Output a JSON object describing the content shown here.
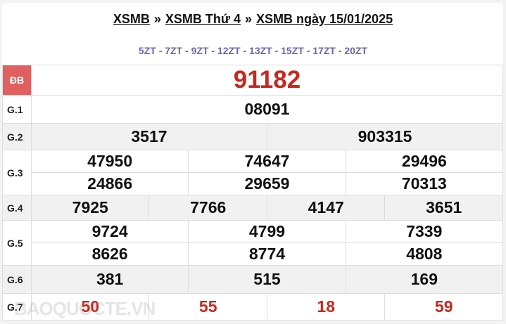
{
  "breadcrumb": {
    "items": [
      "XSMB",
      "XSMB Thứ 4",
      "XSMB ngày 15/01/2025"
    ],
    "separator": "»"
  },
  "zt": "5ZT - 7ZT - 9ZT - 12ZT - 13ZT - 15ZT - 17ZT - 20ZT",
  "prizes": {
    "db": {
      "label": "ĐB",
      "values": [
        "91182"
      ]
    },
    "g1": {
      "label": "G.1",
      "values": [
        "08091"
      ]
    },
    "g2": {
      "label": "G.2",
      "values": [
        "3517",
        "903315"
      ]
    },
    "g3": {
      "label": "G.3",
      "values": [
        "47950",
        "74647",
        "29496",
        "24866",
        "29659",
        "70313"
      ]
    },
    "g4": {
      "label": "G.4",
      "values": [
        "7925",
        "7766",
        "4147",
        "3651"
      ]
    },
    "g5": {
      "label": "G.5",
      "values": [
        "9724",
        "4799",
        "7339",
        "8626",
        "8774",
        "4808"
      ]
    },
    "g6": {
      "label": "G.6",
      "values": [
        "381",
        "515",
        "169"
      ]
    },
    "g7": {
      "label": "G.7",
      "values": [
        "50",
        "55",
        "18",
        "59"
      ]
    }
  },
  "watermark": "BAOQUOCTE.VN",
  "colors": {
    "red": "#c8281e",
    "zt": "#6b66aa",
    "db_label_bg": "#e06060"
  }
}
